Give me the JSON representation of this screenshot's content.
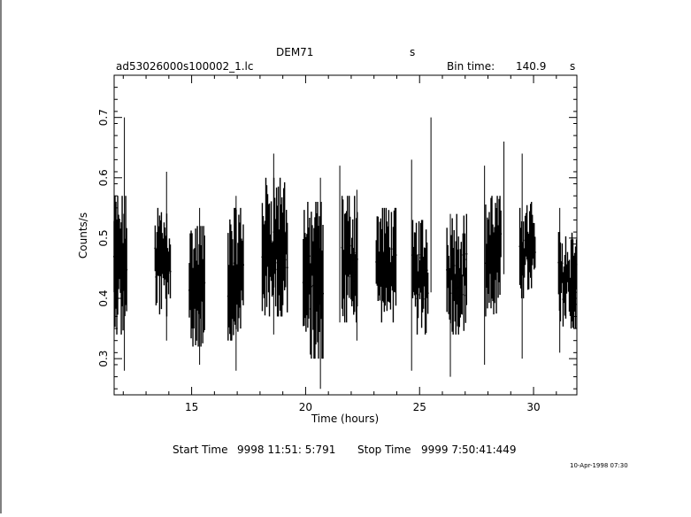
{
  "chart_data": {
    "type": "line",
    "title": "DEM71",
    "title_unit": "s",
    "subtitle_left": "ad53026000s100002_1.lc",
    "bin_time_label": "Bin time:",
    "bin_time_value": "140.9",
    "bin_time_unit": "s",
    "xlabel": "Time (hours)",
    "ylabel": "Counts/s",
    "xlim": [
      11.6,
      31.9
    ],
    "ylim": [
      0.24,
      0.77
    ],
    "x_ticks": [
      15,
      20,
      25,
      30
    ],
    "x_tick_labels": [
      "15",
      "20",
      "25",
      "30"
    ],
    "y_ticks": [
      0.3,
      0.4,
      0.5,
      0.6,
      0.7
    ],
    "y_tick_labels": [
      "0.3",
      "0.4",
      "0.5",
      "0.6",
      "0.7"
    ],
    "grid": false,
    "segments": [
      {
        "start": 11.6,
        "end": 12.15,
        "low": 0.34,
        "high": 0.57
      },
      {
        "start": 13.4,
        "end": 14.1,
        "low": 0.37,
        "high": 0.55
      },
      {
        "start": 14.9,
        "end": 15.6,
        "low": 0.32,
        "high": 0.52
      },
      {
        "start": 16.6,
        "end": 17.3,
        "low": 0.33,
        "high": 0.55
      },
      {
        "start": 18.1,
        "end": 19.2,
        "low": 0.37,
        "high": 0.6
      },
      {
        "start": 19.9,
        "end": 20.8,
        "low": 0.3,
        "high": 0.56
      },
      {
        "start": 21.6,
        "end": 22.3,
        "low": 0.36,
        "high": 0.57
      },
      {
        "start": 23.1,
        "end": 24.0,
        "low": 0.36,
        "high": 0.55
      },
      {
        "start": 24.7,
        "end": 25.4,
        "low": 0.34,
        "high": 0.53
      },
      {
        "start": 26.2,
        "end": 27.1,
        "low": 0.34,
        "high": 0.54
      },
      {
        "start": 27.9,
        "end": 28.6,
        "low": 0.37,
        "high": 0.57
      },
      {
        "start": 29.4,
        "end": 30.1,
        "low": 0.4,
        "high": 0.56
      },
      {
        "start": 31.1,
        "end": 31.9,
        "low": 0.35,
        "high": 0.51
      }
    ],
    "spikes": [
      {
        "x": 12.05,
        "low": 0.28,
        "high": 0.7
      },
      {
        "x": 13.9,
        "low": 0.33,
        "high": 0.61
      },
      {
        "x": 15.35,
        "low": 0.29,
        "high": 0.55
      },
      {
        "x": 16.95,
        "low": 0.28,
        "high": 0.57
      },
      {
        "x": 18.6,
        "low": 0.34,
        "high": 0.64
      },
      {
        "x": 20.65,
        "low": 0.25,
        "high": 0.6
      },
      {
        "x": 21.5,
        "low": 0.36,
        "high": 0.62
      },
      {
        "x": 22.25,
        "low": 0.33,
        "high": 0.58
      },
      {
        "x": 24.65,
        "low": 0.28,
        "high": 0.63
      },
      {
        "x": 25.5,
        "low": 0.41,
        "high": 0.7
      },
      {
        "x": 26.35,
        "low": 0.27,
        "high": 0.54
      },
      {
        "x": 27.85,
        "low": 0.29,
        "high": 0.62
      },
      {
        "x": 28.7,
        "low": 0.44,
        "high": 0.66
      },
      {
        "x": 29.5,
        "low": 0.3,
        "high": 0.64
      },
      {
        "x": 31.15,
        "low": 0.31,
        "high": 0.55
      }
    ]
  },
  "footer": {
    "start_label": "Start Time",
    "start_value": "9998 11:51: 5:791",
    "stop_label": "Stop Time",
    "stop_value": "9999  7:50:41:449",
    "date_stamp": "10-Apr-1998 07:30"
  }
}
